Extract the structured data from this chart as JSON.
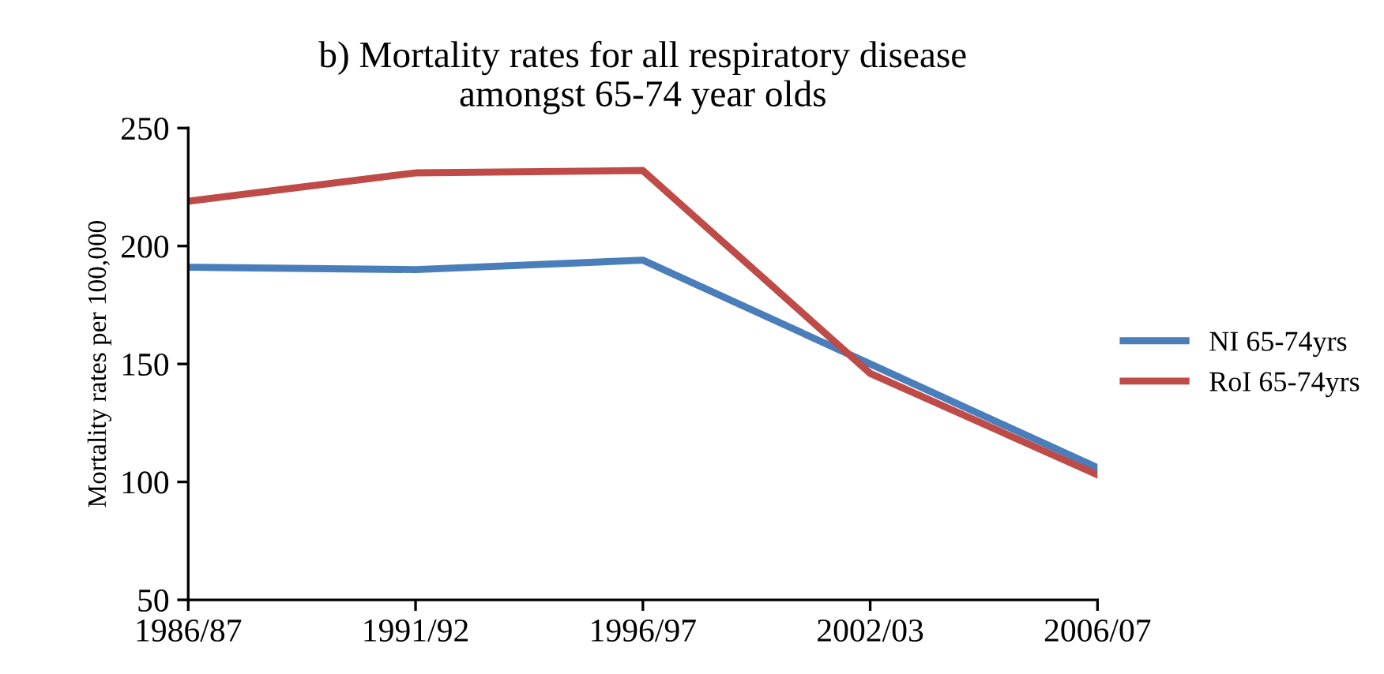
{
  "chart_data": {
    "type": "line",
    "title": "b) Mortality rates for all respiratory disease\namongst 65-74 year olds",
    "ylabel": "Mortality rates per 100,000",
    "categories": [
      "1986/87",
      "1991/92",
      "1996/97",
      "2002/03",
      "2006/07"
    ],
    "series": [
      {
        "name": "NI 65-74yrs",
        "color": "#4a7ebb",
        "values": [
          191,
          190,
          194,
          150,
          106
        ]
      },
      {
        "name": "RoI 65-74yrs",
        "color": "#be4b48",
        "values": [
          219,
          231,
          232,
          146,
          103
        ]
      }
    ],
    "ylim": [
      50,
      250
    ],
    "yticks": [
      50,
      100,
      150,
      200,
      250
    ],
    "grid": false,
    "legend": "right",
    "marker": "none",
    "line_style": "solid"
  }
}
